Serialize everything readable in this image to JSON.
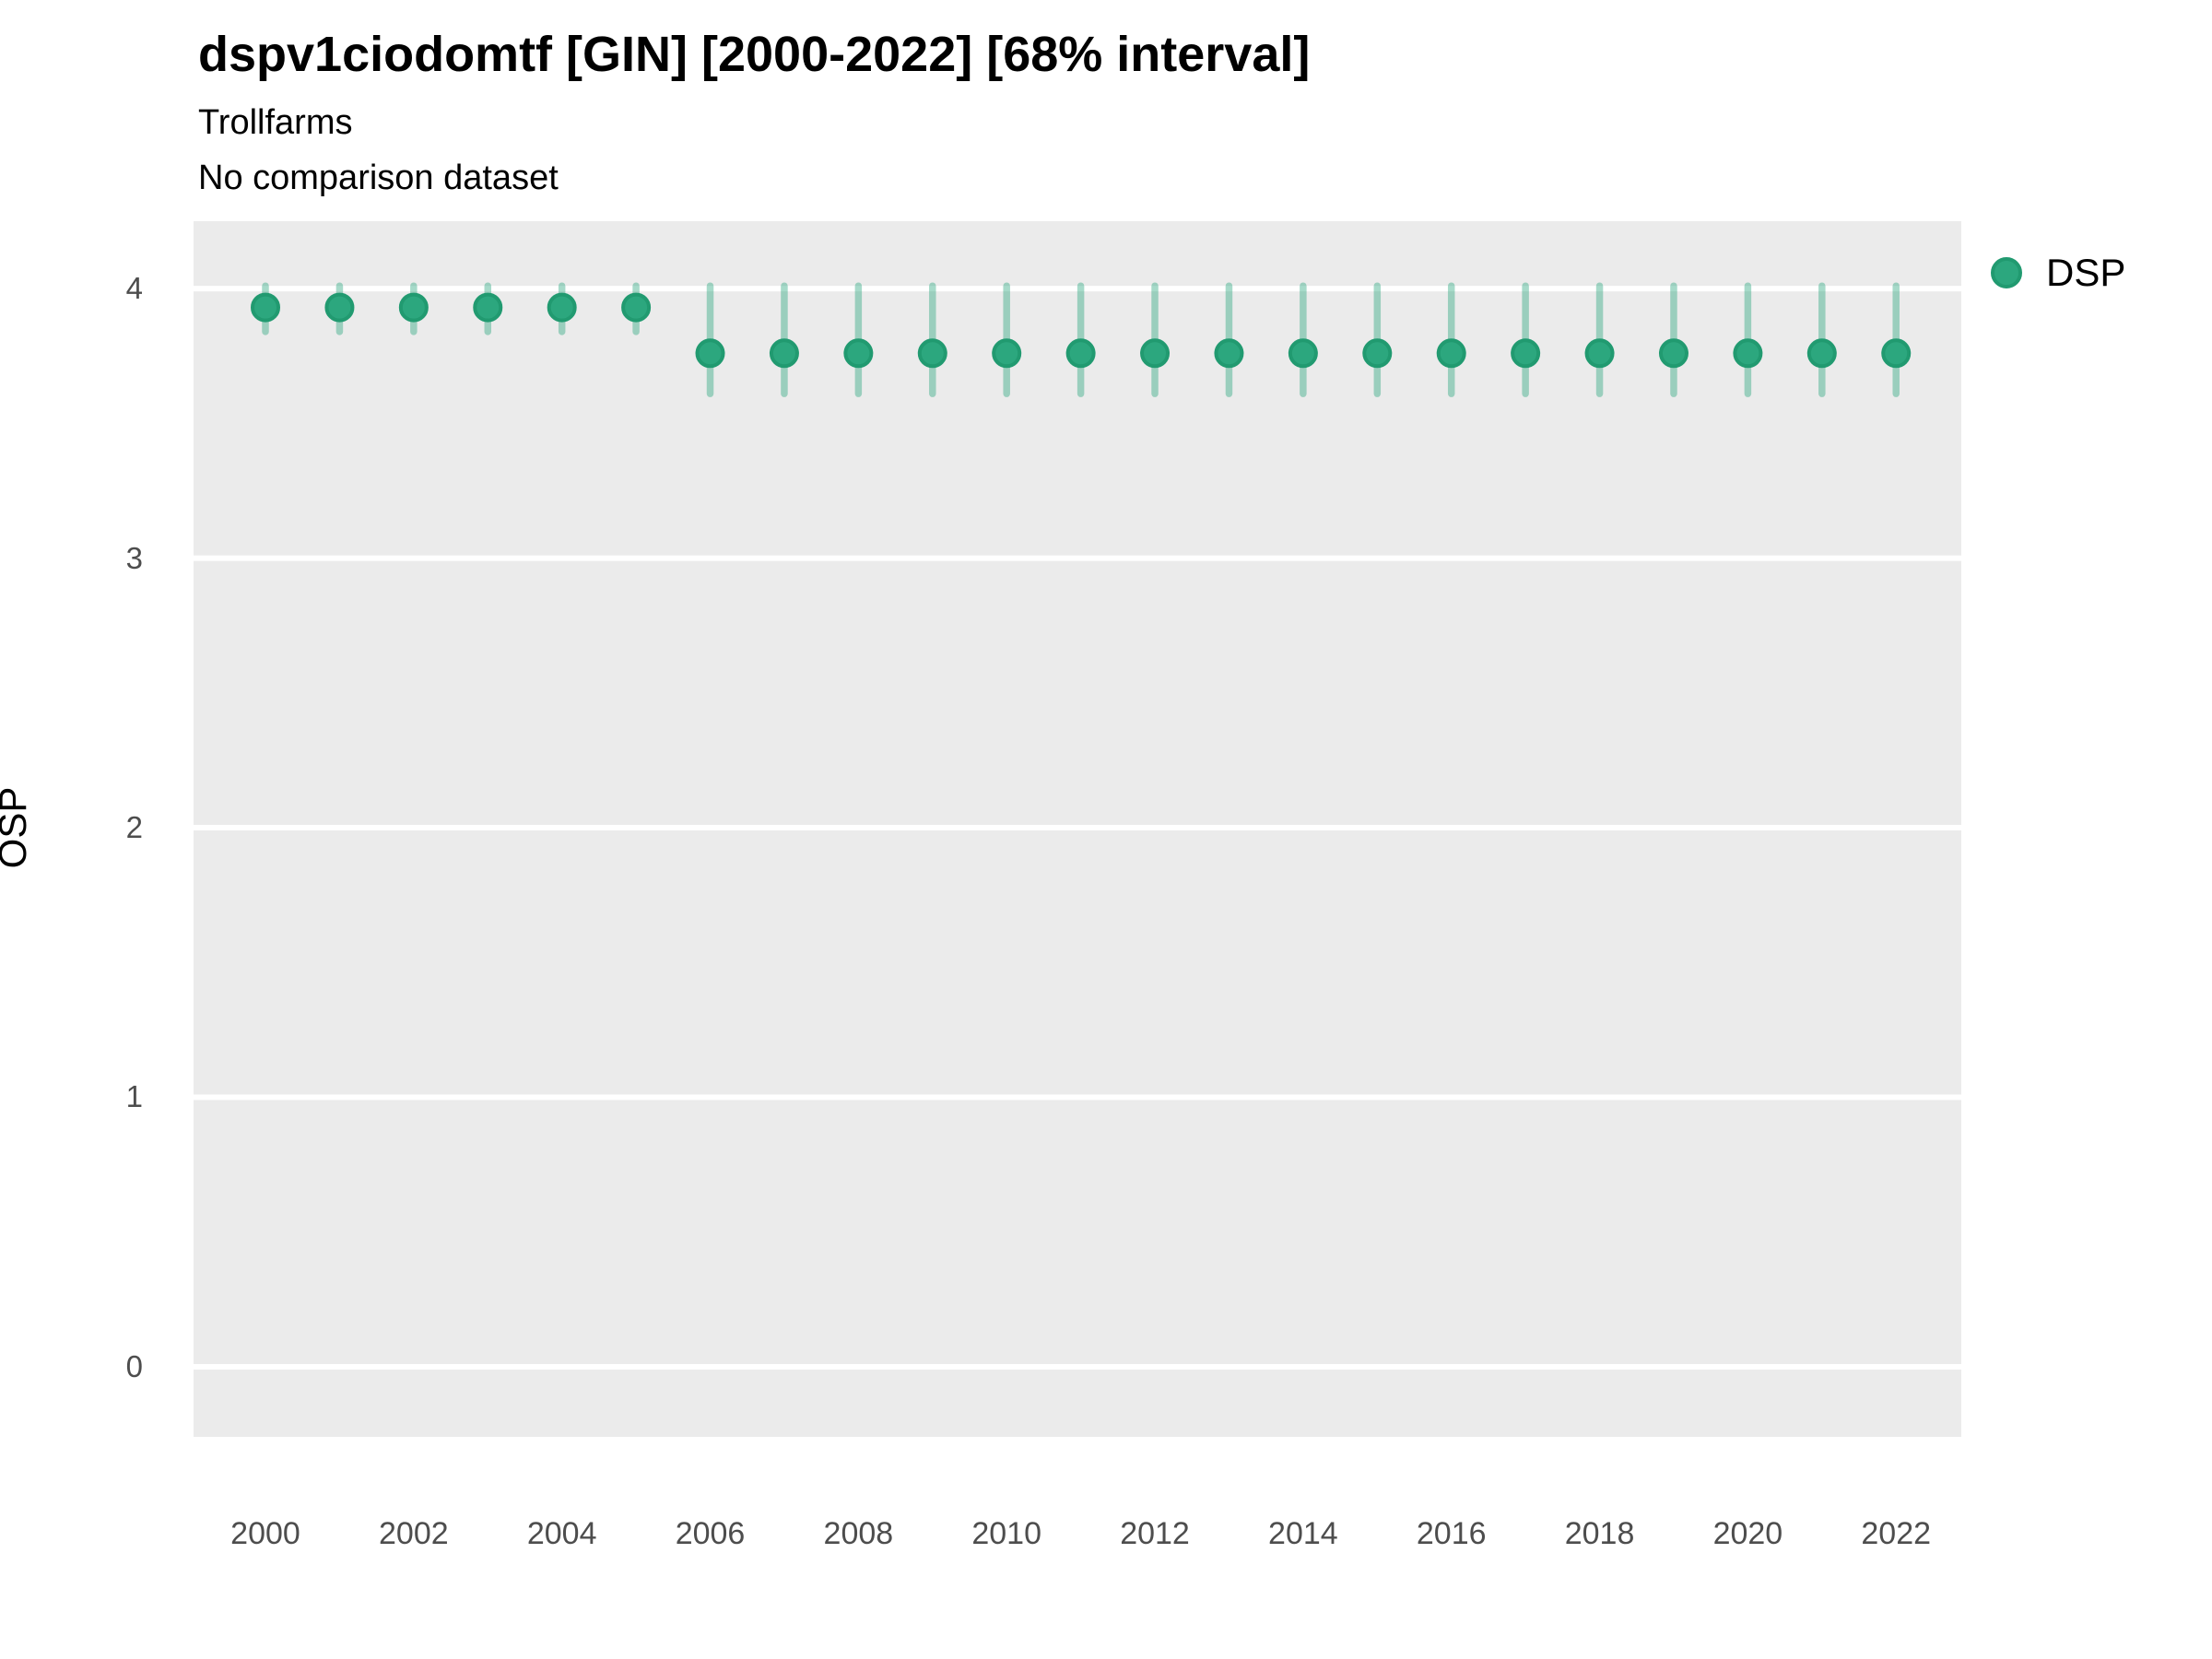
{
  "header": {
    "title": "dspv1ciodomtf [GIN] [2000-2022] [68% interval]",
    "subtitle1": "Trollfarms",
    "subtitle2": "No comparison dataset"
  },
  "legend": {
    "label": "DSP",
    "position": "right"
  },
  "y_axis": {
    "label": "OSP",
    "ticks": [
      4,
      3,
      2,
      1,
      0
    ]
  },
  "x_axis": {
    "ticks": [
      2000,
      2002,
      2004,
      2006,
      2008,
      2010,
      2012,
      2014,
      2016,
      2018,
      2020,
      2022
    ]
  },
  "chart_data": {
    "type": "scatter",
    "subtype": "pointrange",
    "title": "dspv1ciodomtf [GIN] [2000-2022] [68% interval]",
    "subtitle": "Trollfarms / No comparison dataset",
    "xlabel": "",
    "ylabel": "OSP",
    "interval_level": "68%",
    "xlim": [
      1999.03,
      2022.88
    ],
    "ylim": [
      -0.26,
      4.25
    ],
    "grid": "horizontal-only",
    "legend_position": "right",
    "series": [
      {
        "name": "DSP",
        "points": [
          {
            "x": 2000,
            "y": 3.93,
            "lo": 3.84,
            "hi": 4.01
          },
          {
            "x": 2001,
            "y": 3.93,
            "lo": 3.84,
            "hi": 4.01
          },
          {
            "x": 2002,
            "y": 3.93,
            "lo": 3.84,
            "hi": 4.01
          },
          {
            "x": 2003,
            "y": 3.93,
            "lo": 3.84,
            "hi": 4.01
          },
          {
            "x": 2004,
            "y": 3.93,
            "lo": 3.84,
            "hi": 4.01
          },
          {
            "x": 2005,
            "y": 3.93,
            "lo": 3.84,
            "hi": 4.01
          },
          {
            "x": 2006,
            "y": 3.76,
            "lo": 3.61,
            "hi": 4.01
          },
          {
            "x": 2007,
            "y": 3.76,
            "lo": 3.61,
            "hi": 4.01
          },
          {
            "x": 2008,
            "y": 3.76,
            "lo": 3.61,
            "hi": 4.01
          },
          {
            "x": 2009,
            "y": 3.76,
            "lo": 3.61,
            "hi": 4.01
          },
          {
            "x": 2010,
            "y": 3.76,
            "lo": 3.61,
            "hi": 4.01
          },
          {
            "x": 2011,
            "y": 3.76,
            "lo": 3.61,
            "hi": 4.01
          },
          {
            "x": 2012,
            "y": 3.76,
            "lo": 3.61,
            "hi": 4.01
          },
          {
            "x": 2013,
            "y": 3.76,
            "lo": 3.61,
            "hi": 4.01
          },
          {
            "x": 2014,
            "y": 3.76,
            "lo": 3.61,
            "hi": 4.01
          },
          {
            "x": 2015,
            "y": 3.76,
            "lo": 3.61,
            "hi": 4.01
          },
          {
            "x": 2016,
            "y": 3.76,
            "lo": 3.61,
            "hi": 4.01
          },
          {
            "x": 2017,
            "y": 3.76,
            "lo": 3.61,
            "hi": 4.01
          },
          {
            "x": 2018,
            "y": 3.76,
            "lo": 3.61,
            "hi": 4.01
          },
          {
            "x": 2019,
            "y": 3.76,
            "lo": 3.61,
            "hi": 4.01
          },
          {
            "x": 2020,
            "y": 3.76,
            "lo": 3.61,
            "hi": 4.01
          },
          {
            "x": 2021,
            "y": 3.76,
            "lo": 3.61,
            "hi": 4.01
          },
          {
            "x": 2022,
            "y": 3.76,
            "lo": 3.61,
            "hi": 4.01
          }
        ]
      }
    ]
  },
  "colors": {
    "point_fill": "#2ca77e",
    "point_stroke": "#219a70",
    "interval_bar": "rgba(44,167,126,0.42)",
    "panel_bg": "#ebebeb",
    "gridline": "#ffffff",
    "tick_text": "#4d4d4d",
    "title_text": "#000000"
  }
}
